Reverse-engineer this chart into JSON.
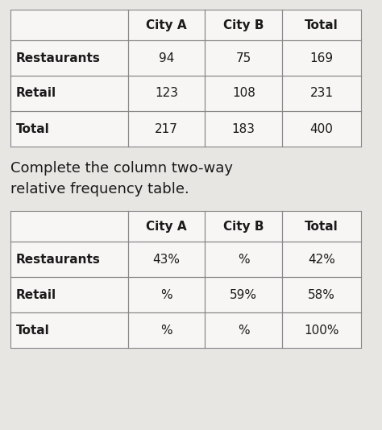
{
  "bg_color": "#e8e6e3",
  "table_bg": "#f5f4f2",
  "text_color": "#1a1a1a",
  "line_color": "#888888",
  "instruction_text": "Complete the column two-way\nrelative frequency table.",
  "table1": {
    "col_headers": [
      "",
      "City A",
      "City B",
      "Total"
    ],
    "rows": [
      [
        "Restaurants",
        "94",
        "75",
        "169"
      ],
      [
        "Retail",
        "123",
        "108",
        "231"
      ],
      [
        "Total",
        "217",
        "183",
        "400"
      ]
    ]
  },
  "table2": {
    "col_headers": [
      "",
      "City A",
      "City B",
      "Total"
    ],
    "rows": [
      [
        "Restaurants",
        "43%",
        "%",
        "42%"
      ],
      [
        "Retail",
        "%",
        "59%",
        "58%"
      ],
      [
        "Total",
        "%",
        "%",
        "100%"
      ]
    ]
  },
  "font_size": 11,
  "instr_font_size": 13,
  "figw": 4.74,
  "figh": 5.34,
  "dpi": 100
}
